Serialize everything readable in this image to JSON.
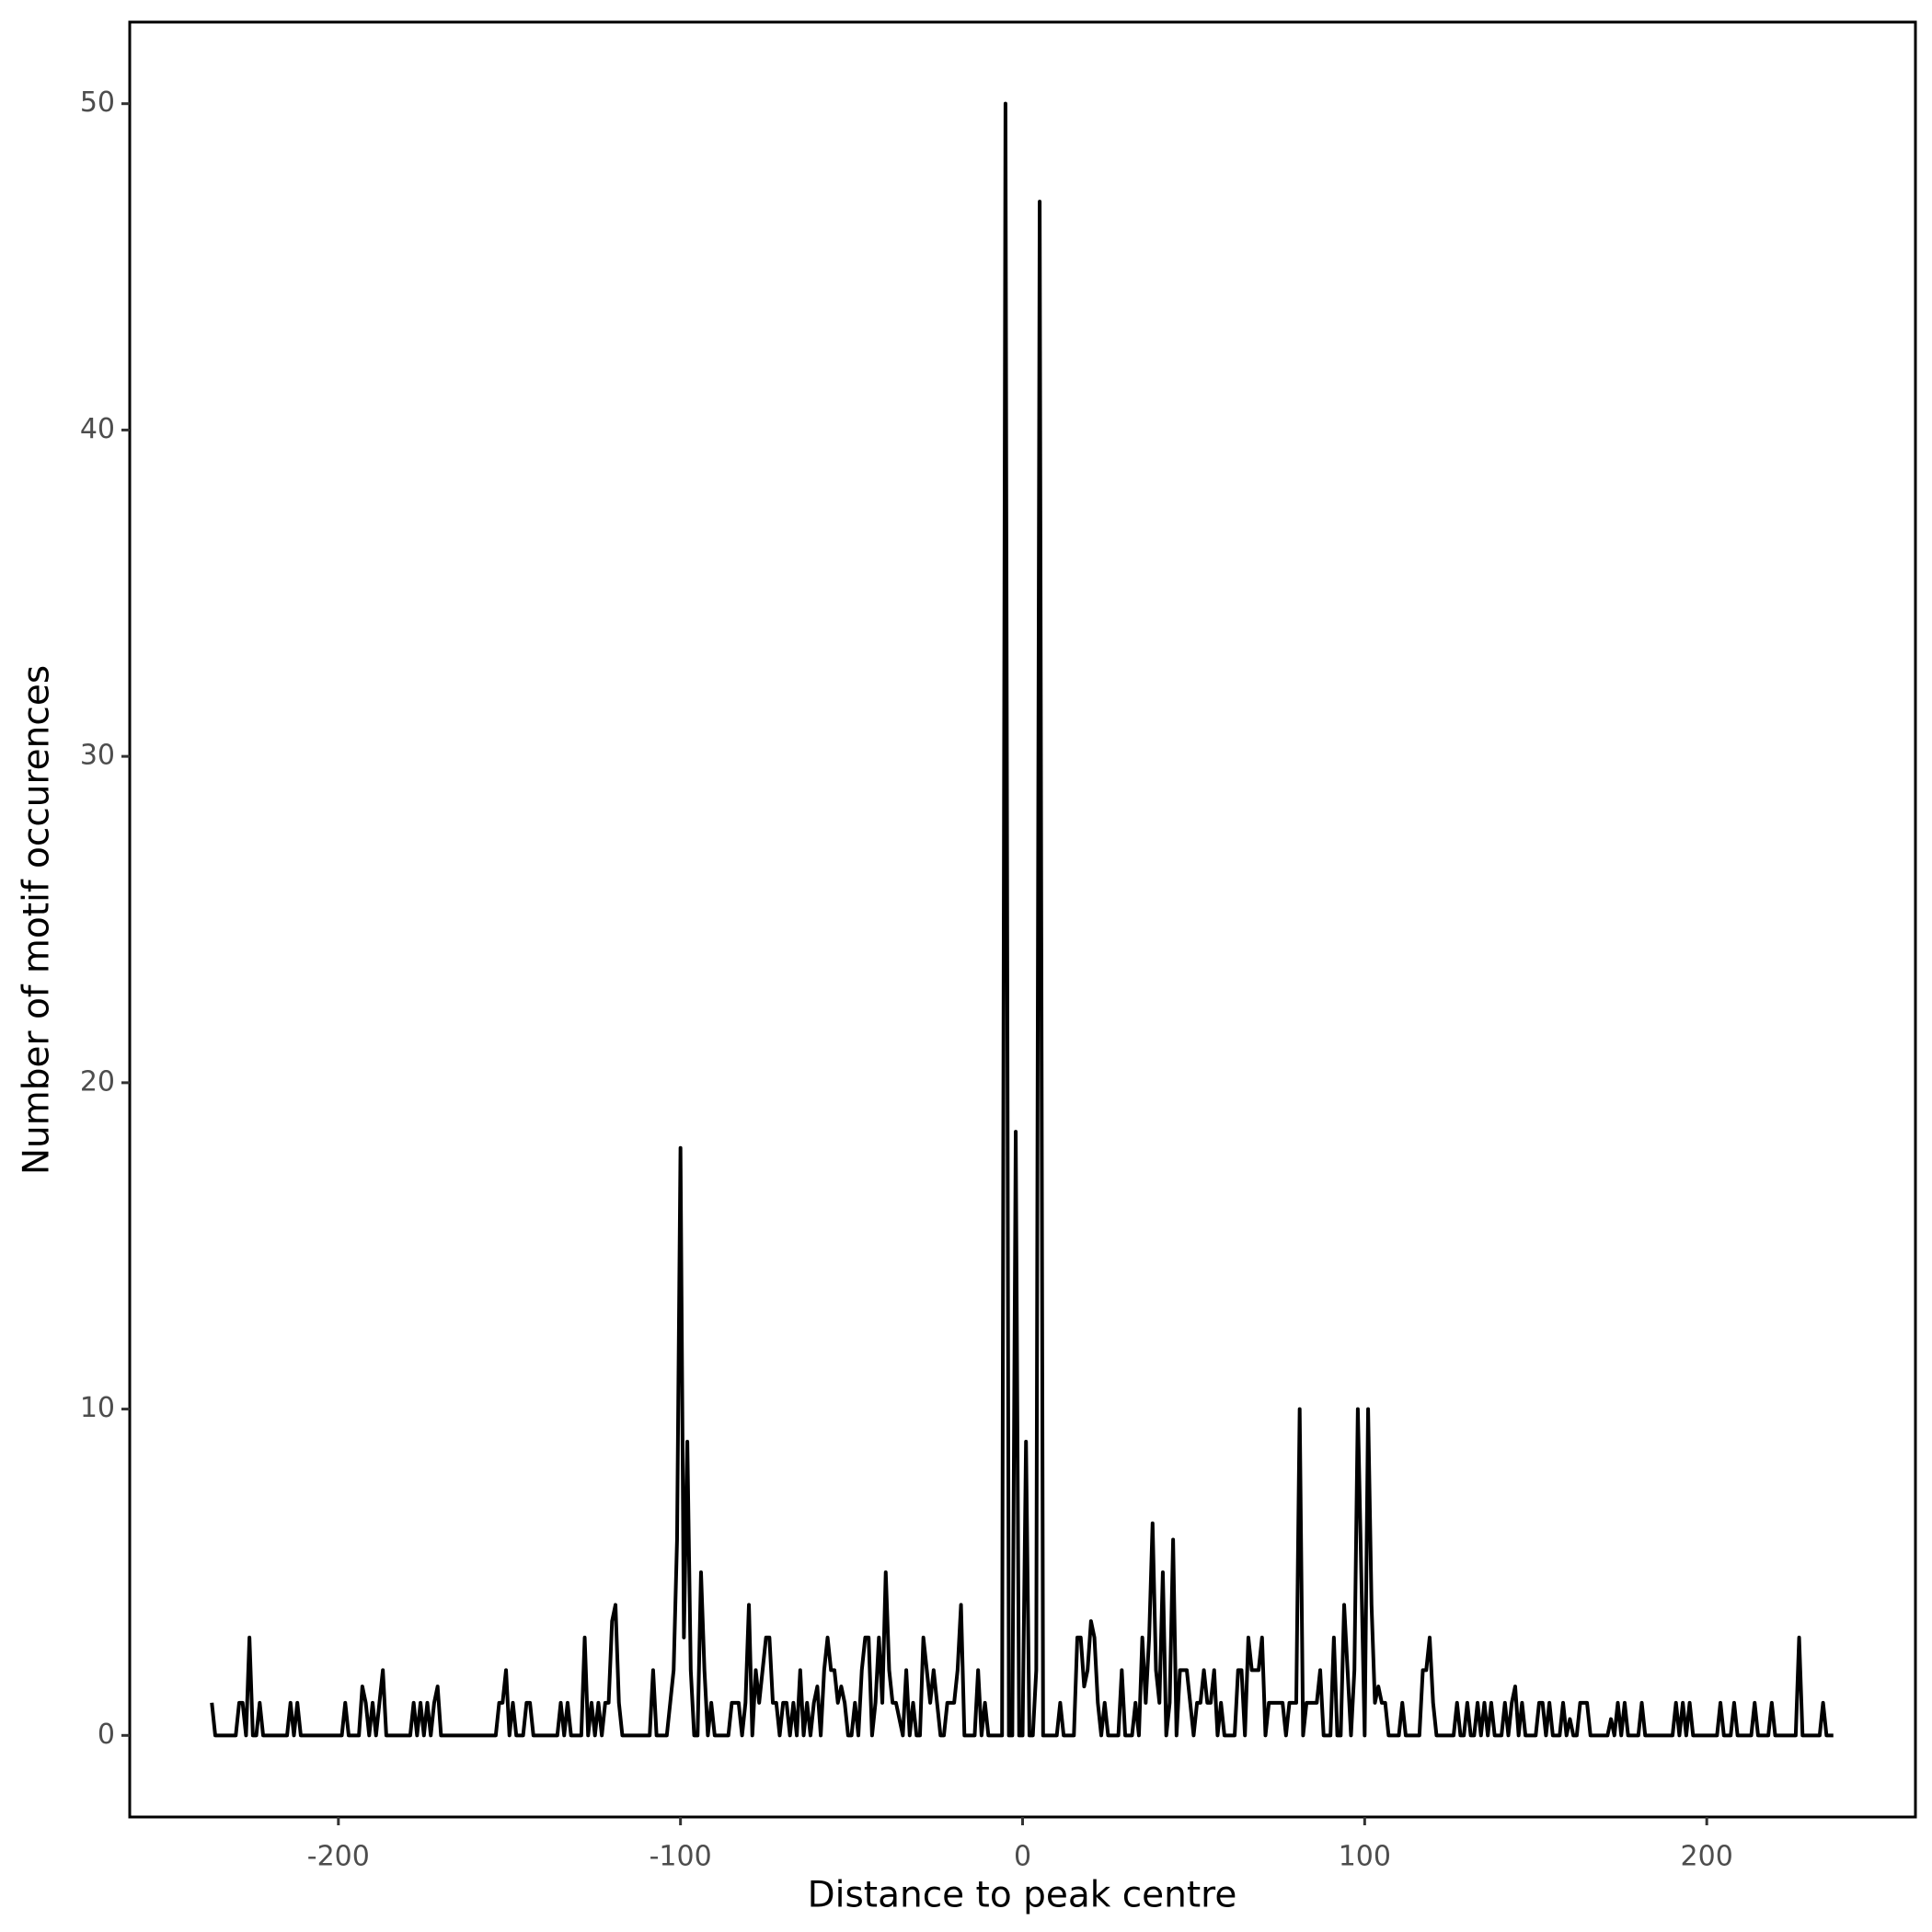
{
  "chart_data": {
    "type": "line",
    "xlabel": "Distance to peak centre",
    "ylabel": "Number of motif occurences",
    "xlim": [
      -261,
      261
    ],
    "ylim": [
      -2.5,
      52.5
    ],
    "xticks": [
      -200,
      -100,
      0,
      100,
      200
    ],
    "yticks": [
      0,
      10,
      20,
      30,
      40,
      50
    ],
    "grid": false,
    "x": [
      -237,
      -236,
      -230,
      -229,
      -228,
      -227,
      -226,
      -225,
      -224,
      -223,
      -222,
      -215,
      -214,
      -213,
      -212,
      -211,
      -199,
      -198,
      -197,
      -194,
      -193,
      -192,
      -191,
      -190,
      -189,
      -188,
      -187,
      -186,
      -179,
      -178,
      -177,
      -176,
      -175,
      -174,
      -173,
      -172,
      -171,
      -170,
      -154,
      -153,
      -152,
      -151,
      -150,
      -149,
      -148,
      -146,
      -145,
      -144,
      -143,
      -136,
      -135,
      -134,
      -133,
      -132,
      -129,
      -128,
      -127,
      -126,
      -125,
      -124,
      -123,
      -122,
      -121,
      -120,
      -119,
      -118,
      -117,
      -109,
      -108,
      -107,
      -104,
      -103,
      -102,
      -101,
      -100,
      -99,
      -98,
      -97,
      -96,
      -95,
      -94,
      -93,
      -92,
      -91,
      -90,
      -86,
      -85,
      -84,
      -83,
      -82,
      -81,
      -80,
      -79,
      -78,
      -77,
      -76,
      -75,
      -74,
      -73,
      -72,
      -71,
      -70,
      -69,
      -68,
      -67,
      -66,
      -65,
      -64,
      -63,
      -62,
      -61,
      -60,
      -59,
      -58,
      -57,
      -56,
      -55,
      -54,
      -53,
      -52,
      -51,
      -50,
      -49,
      -48,
      -47,
      -46,
      -45,
      -44,
      -43,
      -42,
      -41,
      -40,
      -39,
      -38,
      -37,
      -36,
      -35,
      -34,
      -33,
      -32,
      -31,
      -30,
      -29,
      -28,
      -27,
      -26,
      -25,
      -24,
      -23,
      -22,
      -21,
      -20,
      -19,
      -18,
      -17,
      -14,
      -13,
      -12,
      -11,
      -10,
      -7,
      -6,
      -5,
      -4,
      -3,
      -2,
      -1,
      0,
      1,
      2,
      3,
      4,
      5,
      6,
      10,
      11,
      12,
      15,
      16,
      17,
      18,
      19,
      20,
      21,
      22,
      23,
      24,
      25,
      28,
      29,
      30,
      32,
      33,
      34,
      35,
      36,
      37,
      38,
      39,
      40,
      41,
      42,
      43,
      44,
      45,
      46,
      47,
      48,
      49,
      50,
      51,
      52,
      53,
      54,
      55,
      56,
      57,
      58,
      59,
      62,
      63,
      64,
      65,
      66,
      67,
      68,
      69,
      70,
      71,
      72,
      76,
      77,
      78,
      79,
      80,
      81,
      82,
      83,
      86,
      87,
      88,
      90,
      91,
      92,
      93,
      94,
      95,
      96,
      97,
      98,
      99,
      100,
      101,
      102,
      103,
      104,
      105,
      106,
      107,
      110,
      111,
      112,
      116,
      117,
      118,
      119,
      120,
      121,
      126,
      127,
      128,
      129,
      130,
      131,
      132,
      133,
      134,
      135,
      136,
      137,
      138,
      140,
      141,
      142,
      143,
      144,
      145,
      146,
      147,
      150,
      151,
      152,
      153,
      154,
      155,
      157,
      158,
      159,
      160,
      161,
      162,
      163,
      164,
      165,
      166,
      171,
      172,
      173,
      174,
      175,
      176,
      177,
      180,
      181,
      182,
      190,
      191,
      192,
      193,
      194,
      195,
      196,
      203,
      204,
      205,
      207,
      208,
      209,
      213,
      214,
      215,
      218,
      219,
      220,
      226,
      227,
      228,
      233,
      234,
      235,
      237
    ],
    "series": [
      {
        "color": "#000000",
        "values": [
          1,
          0,
          0,
          1,
          1,
          0,
          3,
          0,
          0,
          1,
          0,
          0,
          1,
          0,
          1,
          0,
          0,
          1,
          0,
          0,
          1.5,
          1,
          0,
          1,
          0,
          1,
          2,
          0,
          0,
          1,
          0,
          1,
          0,
          1,
          0,
          1,
          1.5,
          0,
          0,
          1,
          1,
          2,
          0,
          1,
          0,
          0,
          1,
          1,
          0,
          0,
          1,
          0,
          1,
          0,
          0,
          3,
          0,
          1,
          0,
          1,
          0,
          1,
          1,
          3.5,
          4,
          1,
          0,
          0,
          2,
          0,
          0,
          1,
          2,
          6,
          18,
          3,
          9,
          2,
          0,
          0,
          5,
          2,
          0,
          1,
          0,
          0,
          1,
          1,
          1,
          0,
          1,
          4,
          0,
          2,
          1,
          2,
          3,
          3,
          1,
          1,
          0,
          1,
          1,
          0,
          1,
          0,
          2,
          0,
          1,
          0,
          1,
          1.5,
          0,
          2,
          3,
          2,
          2,
          1,
          1.5,
          1,
          0,
          0,
          1,
          0,
          2,
          3,
          3,
          0,
          1,
          3,
          1,
          5,
          2,
          1,
          1,
          0.5,
          0,
          2,
          0,
          1,
          0,
          0,
          3,
          2,
          1,
          2,
          1,
          0,
          0,
          1,
          1,
          1,
          2,
          4,
          0,
          0,
          2,
          0,
          1,
          0,
          0,
          0,
          50,
          0,
          0,
          18.5,
          0,
          0,
          9,
          0,
          0,
          2,
          47,
          0,
          0,
          1,
          0,
          0,
          3,
          3,
          1.5,
          2,
          3.5,
          3,
          1,
          0,
          1,
          0,
          0,
          2,
          0,
          0,
          1,
          0,
          3,
          1,
          3,
          6.5,
          2,
          1,
          5,
          0,
          1,
          6,
          0,
          2,
          2,
          2,
          1,
          0,
          1,
          1,
          2,
          1,
          1,
          2,
          0,
          1,
          0,
          0,
          2,
          2,
          0,
          3,
          2,
          2,
          2,
          3,
          0,
          1,
          1,
          0,
          1,
          1,
          1,
          10,
          0,
          1,
          1,
          2,
          0,
          0,
          3,
          0,
          0,
          4,
          2,
          0,
          2,
          10,
          5,
          0,
          10,
          4,
          1,
          1.5,
          1,
          1,
          0,
          0,
          1,
          0,
          0,
          2,
          2,
          3,
          1,
          0,
          0,
          1,
          0,
          0,
          1,
          0,
          0,
          1,
          0,
          1,
          0,
          1,
          0,
          0,
          1,
          0,
          1,
          1.5,
          0,
          1,
          0,
          0,
          1,
          1,
          0,
          1,
          0,
          0,
          1,
          0,
          0.5,
          0,
          0,
          1,
          1,
          1,
          0,
          0,
          0.5,
          0,
          1,
          0,
          1,
          0,
          0,
          1,
          0,
          0,
          1,
          0,
          1,
          0,
          1,
          0,
          0,
          1,
          0,
          0,
          1,
          0,
          0,
          1,
          0,
          0,
          1,
          0,
          0,
          3,
          0,
          0,
          1,
          0,
          0
        ]
      }
    ]
  }
}
